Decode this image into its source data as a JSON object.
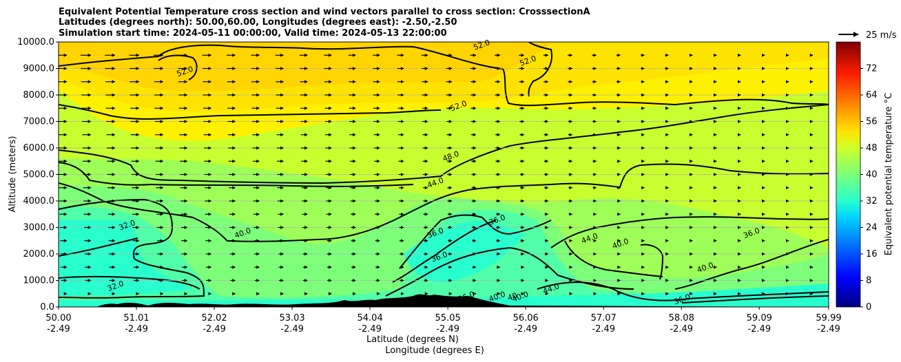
{
  "chart_data": {
    "type": "contour",
    "title_lines": [
      "Equivalent Potential Temperature cross section and wind vectors parallel to cross section: CrosssectionA",
      "Latitudes (degrees north): 50.00,60.00, Longitudes (degrees east): -2.50,-2.50",
      "Simulation start time: 2024-05-11 00:00:00, Valid time: 2024-05-13 22:00:00"
    ],
    "ylabel": "Altitude (meters)",
    "xlabel_lines": [
      "Latitude (degrees N)",
      "Longitude (degrees E)"
    ],
    "colorbar_label": "Equivalent potential temperature °C",
    "xlim": [
      50.0,
      59.99
    ],
    "ylim": [
      0,
      10000
    ],
    "grid": "horizontal",
    "x_ticks": [
      {
        "lat": "50.00",
        "lon": "-2.49",
        "value": 50.0
      },
      {
        "lat": "51.01",
        "lon": "-2.49",
        "value": 51.01
      },
      {
        "lat": "52.02",
        "lon": "-2.49",
        "value": 52.02
      },
      {
        "lat": "53.03",
        "lon": "-2.49",
        "value": 53.03
      },
      {
        "lat": "54.04",
        "lon": "-2.49",
        "value": 54.04
      },
      {
        "lat": "55.05",
        "lon": "-2.49",
        "value": 55.05
      },
      {
        "lat": "56.06",
        "lon": "-2.49",
        "value": 56.06
      },
      {
        "lat": "57.07",
        "lon": "-2.49",
        "value": 57.07
      },
      {
        "lat": "58.08",
        "lon": "-2.49",
        "value": 58.08
      },
      {
        "lat": "59.09",
        "lon": "-2.49",
        "value": 59.09
      },
      {
        "lat": "59.99",
        "lon": "-2.49",
        "value": 59.99
      }
    ],
    "y_ticks": [
      {
        "label": "0.0",
        "value": 0
      },
      {
        "label": "1000.0",
        "value": 1000
      },
      {
        "label": "2000.0",
        "value": 2000
      },
      {
        "label": "3000.0",
        "value": 3000
      },
      {
        "label": "4000.0",
        "value": 4000
      },
      {
        "label": "5000.0",
        "value": 5000
      },
      {
        "label": "6000.0",
        "value": 6000
      },
      {
        "label": "7000.0",
        "value": 7000
      },
      {
        "label": "8000.0",
        "value": 8000
      },
      {
        "label": "9000.0",
        "value": 9000
      },
      {
        "label": "10000.0",
        "value": 10000
      }
    ],
    "colorbar": {
      "range": [
        0,
        80
      ],
      "ticks": [
        "0",
        "8",
        "16",
        "24",
        "32",
        "40",
        "48",
        "56",
        "64",
        "72"
      ],
      "colormap": "jet"
    },
    "quiver_key": {
      "label": "25 m/s",
      "speed": 25
    },
    "contour_levels": [
      32,
      36,
      40,
      44,
      48,
      52
    ],
    "contour_labels": [
      {
        "text": "52.0",
        "lat": 51.65,
        "alt": 8800
      },
      {
        "text": "52.0",
        "lat": 55.5,
        "alt": 9800
      },
      {
        "text": "52.0",
        "lat": 56.1,
        "alt": 9200
      },
      {
        "text": "52.0",
        "lat": 55.2,
        "alt": 7500
      },
      {
        "text": "48.0",
        "lat": 55.1,
        "alt": 5600
      },
      {
        "text": "44.0",
        "lat": 54.9,
        "alt": 4600
      },
      {
        "text": "40.0",
        "lat": 52.4,
        "alt": 2700
      },
      {
        "text": "40.0",
        "lat": 58.4,
        "alt": 1400
      },
      {
        "text": "36.0",
        "lat": 54.9,
        "alt": 2700
      },
      {
        "text": "36.0",
        "lat": 54.95,
        "alt": 1800
      },
      {
        "text": "36.0",
        "lat": 55.7,
        "alt": 3200
      },
      {
        "text": "36.0",
        "lat": 59.0,
        "alt": 2700
      },
      {
        "text": "36.0",
        "lat": 58.1,
        "alt": 200
      },
      {
        "text": "32.0",
        "lat": 50.9,
        "alt": 3000
      },
      {
        "text": "32.0",
        "lat": 50.75,
        "alt": 700
      },
      {
        "text": "44.0",
        "lat": 56.9,
        "alt": 2500
      },
      {
        "text": "40.0",
        "lat": 57.3,
        "alt": 2300
      },
      {
        "text": "44.0",
        "lat": 56.4,
        "alt": 600
      },
      {
        "text": "40.0",
        "lat": 56.0,
        "alt": 300
      },
      {
        "text": "40",
        "lat": 55.9,
        "alt": 300
      },
      {
        "text": "40.0",
        "lat": 55.7,
        "alt": 300
      },
      {
        "text": "36.0",
        "lat": 55.3,
        "alt": 300
      }
    ]
  }
}
